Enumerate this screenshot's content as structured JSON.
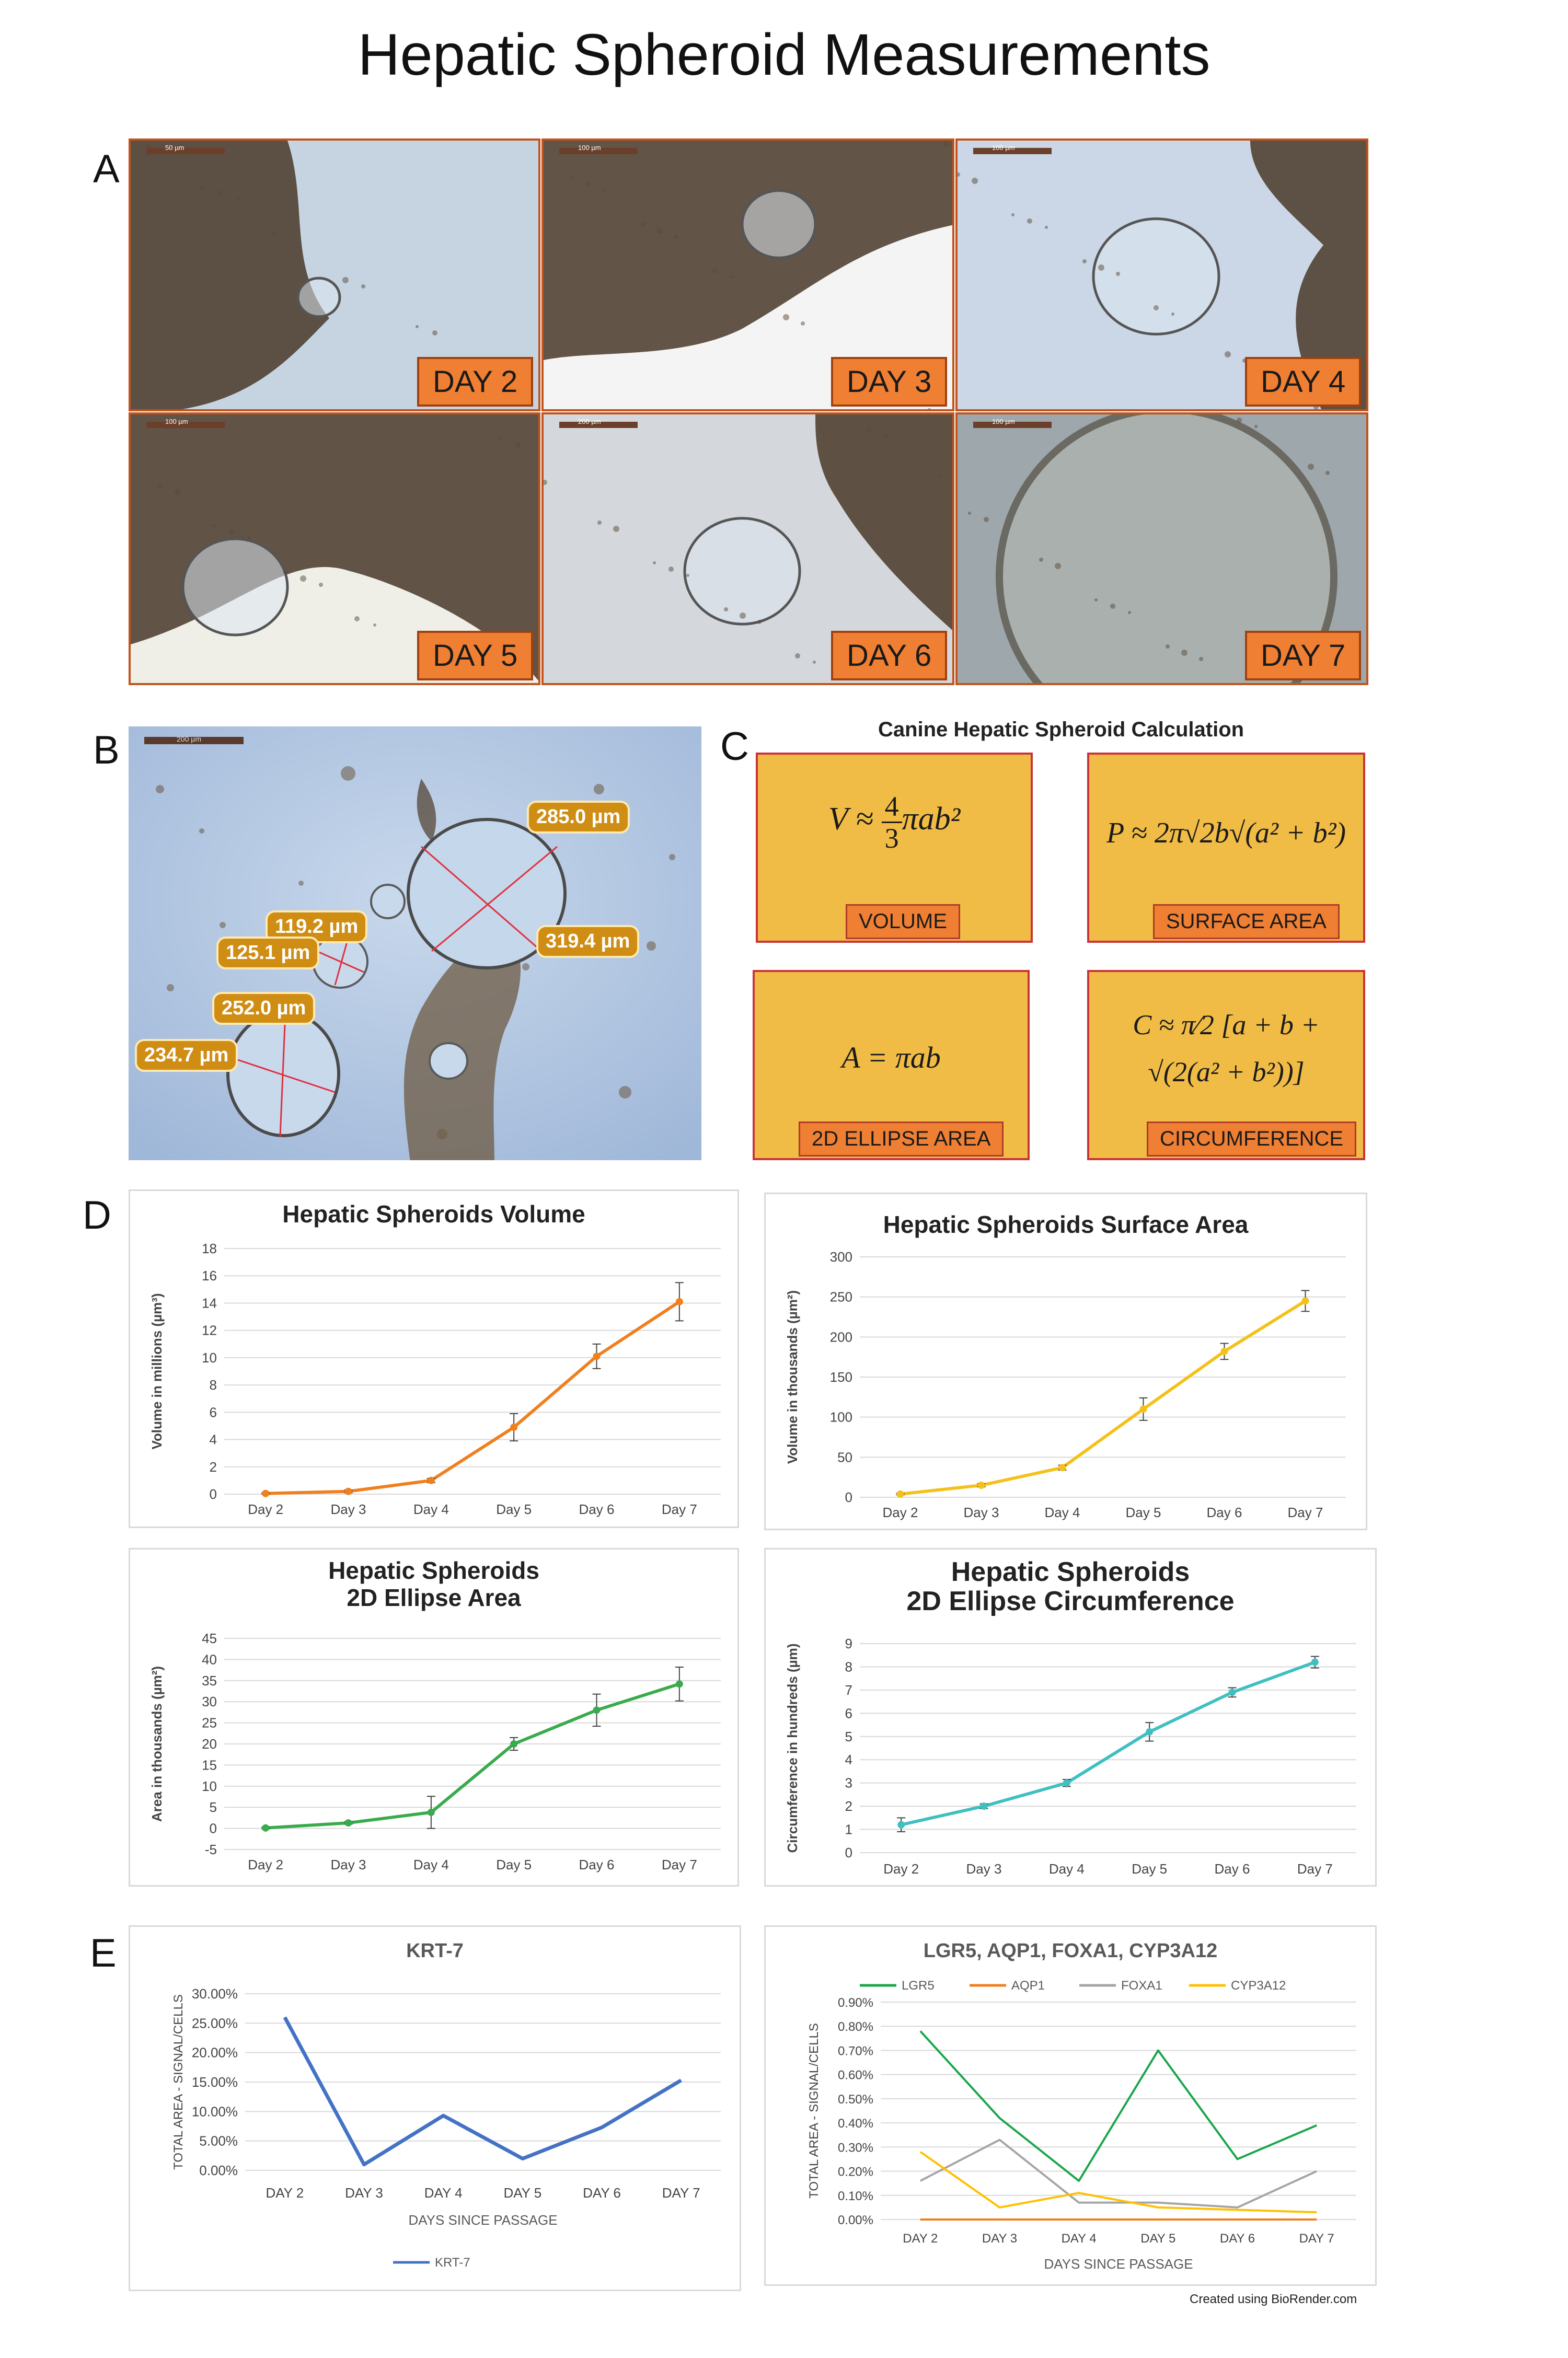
{
  "title": "Hepatic Spheroid Measurements",
  "panels": {
    "a": "A",
    "b": "B",
    "c": "C",
    "d": "D",
    "e": "E"
  },
  "micrographs": [
    {
      "day": "DAY 2",
      "scale": "50 µm"
    },
    {
      "day": "DAY 3",
      "scale": "100 µm"
    },
    {
      "day": "DAY 4",
      "scale": "100 µm"
    },
    {
      "day": "DAY 5",
      "scale": "100 µm"
    },
    {
      "day": "DAY 6",
      "scale": "200 µm"
    },
    {
      "day": "DAY 7",
      "scale": "100 µm"
    }
  ],
  "panel_b": {
    "scale": "200 µm",
    "measurements": [
      "285.0 µm",
      "319.4 µm",
      "119.2 µm",
      "125.1 µm",
      "252.0 µm",
      "234.7 µm"
    ]
  },
  "panel_c": {
    "title": "Canine Hepatic Spheroid Calculation",
    "formulas": [
      {
        "label": "VOLUME"
      },
      {
        "label": "SURFACE AREA"
      },
      {
        "label": "2D ELLIPSE AREA"
      },
      {
        "label": "CIRCUMFERENCE"
      }
    ]
  },
  "credit": "Created using BioRender.com",
  "colors": {
    "volume": "#f07f1e",
    "surface": "#f4c11a",
    "area": "#3aab4c",
    "circumference": "#40bfc1",
    "krt7": "#4472c4",
    "lgr5": "#1aa64a",
    "aqp1": "#ef7f1e",
    "foxa1": "#a5a5a5",
    "cyp3a12": "#ffc000",
    "label_orange": "#ef7f33",
    "box_yellow": "#f1bc45"
  },
  "chart_data": [
    {
      "id": "volume",
      "type": "line",
      "title": [
        "Hepatic Spheroids Volume"
      ],
      "ylabel": "Volume in millions (µm³)",
      "xlabel": "",
      "categories": [
        "Day 2",
        "Day 3",
        "Day 4",
        "Day 5",
        "Day 6",
        "Day 7"
      ],
      "ylim": [
        0,
        18
      ],
      "yticks": [
        0,
        2,
        4,
        6,
        8,
        10,
        12,
        14,
        16,
        18
      ],
      "grid": true,
      "series": [
        {
          "values": [
            0.05,
            0.2,
            1.0,
            4.9,
            10.1,
            14.1
          ],
          "errors": [
            0.05,
            0.1,
            0.15,
            1.0,
            0.9,
            1.4
          ]
        }
      ]
    },
    {
      "id": "surface",
      "type": "line",
      "title": [
        "Hepatic Spheroids Surface Area"
      ],
      "ylabel": "Volume in thousands (µm²)",
      "xlabel": "",
      "categories": [
        "Day 2",
        "Day 3",
        "Day 4",
        "Day 5",
        "Day 6",
        "Day 7"
      ],
      "ylim": [
        0,
        300
      ],
      "yticks": [
        0,
        50,
        100,
        150,
        200,
        250,
        300
      ],
      "grid": true,
      "series": [
        {
          "values": [
            4,
            15,
            37,
            110,
            182,
            245
          ],
          "errors": [
            1,
            2,
            3,
            14,
            10,
            13
          ]
        }
      ]
    },
    {
      "id": "area",
      "type": "line",
      "title": [
        "Hepatic Spheroids",
        "2D Ellipse Area"
      ],
      "ylabel": "Area in thousands (µm²)",
      "xlabel": "",
      "categories": [
        "Day 2",
        "Day 3",
        "Day 4",
        "Day 5",
        "Day 6",
        "Day 7"
      ],
      "ylim": [
        -5,
        45
      ],
      "yticks": [
        -5,
        0,
        5,
        10,
        15,
        20,
        25,
        30,
        35,
        40,
        45
      ],
      "grid": true,
      "series": [
        {
          "values": [
            0.1,
            1.3,
            3.8,
            20.0,
            28.0,
            34.2
          ],
          "errors": [
            0.2,
            0.3,
            3.8,
            1.5,
            3.8,
            4.0
          ]
        }
      ]
    },
    {
      "id": "circumference",
      "type": "line",
      "title": [
        "Hepatic Spheroids",
        "2D Ellipse Circumference"
      ],
      "ylabel": "Circumference in hundreds (µm)",
      "xlabel": "",
      "categories": [
        "Day 2",
        "Day 3",
        "Day 4",
        "Day 5",
        "Day 6",
        "Day 7"
      ],
      "ylim": [
        0,
        9
      ],
      "yticks": [
        0,
        1,
        2,
        3,
        4,
        5,
        6,
        7,
        8,
        9
      ],
      "grid": true,
      "series": [
        {
          "values": [
            1.2,
            2.0,
            3.0,
            5.2,
            6.9,
            8.2
          ],
          "errors": [
            0.3,
            0.1,
            0.15,
            0.4,
            0.2,
            0.25
          ]
        }
      ]
    },
    {
      "id": "krt7",
      "type": "line",
      "title": [
        "KRT-7"
      ],
      "ylabel": "TOTAL AREA - SIGNAL/CELLS",
      "xlabel": "DAYS SINCE PASSAGE",
      "categories": [
        "DAY 2",
        "DAY 3",
        "DAY 4",
        "DAY 5",
        "DAY 6",
        "DAY 7"
      ],
      "ylim": [
        0,
        30
      ],
      "yticks": [
        0,
        5,
        10,
        15,
        20,
        25,
        30
      ],
      "ytickfmt": "percent2",
      "grid": true,
      "legend": "bottom",
      "series": [
        {
          "name": "KRT-7",
          "values": [
            26.0,
            1.0,
            9.3,
            2.0,
            7.3,
            15.3
          ]
        }
      ]
    },
    {
      "id": "markers",
      "type": "line",
      "title": [
        "LGR5, AQP1, FOXA1, CYP3A12"
      ],
      "ylabel": "TOTAL AREA - SIGNAL/CELLS",
      "xlabel": "DAYS SINCE PASSAGE",
      "categories": [
        "DAY 2",
        "DAY 3",
        "DAY 4",
        "DAY 5",
        "DAY 6",
        "DAY 7"
      ],
      "ylim": [
        0,
        0.9
      ],
      "yticks": [
        0,
        0.1,
        0.2,
        0.3,
        0.4,
        0.5,
        0.6,
        0.7,
        0.8,
        0.9
      ],
      "ytickfmt": "percent2",
      "grid": true,
      "legend": "top",
      "series": [
        {
          "name": "LGR5",
          "values": [
            0.78,
            0.42,
            0.16,
            0.7,
            0.25,
            0.39
          ]
        },
        {
          "name": "AQP1",
          "values": [
            0.0,
            0.0,
            0.0,
            0.0,
            0.0,
            0.0
          ]
        },
        {
          "name": "FOXA1",
          "values": [
            0.16,
            0.33,
            0.07,
            0.07,
            0.05,
            0.2
          ]
        },
        {
          "name": "CYP3A12",
          "values": [
            0.28,
            0.05,
            0.11,
            0.05,
            0.04,
            0.03
          ]
        }
      ]
    }
  ]
}
